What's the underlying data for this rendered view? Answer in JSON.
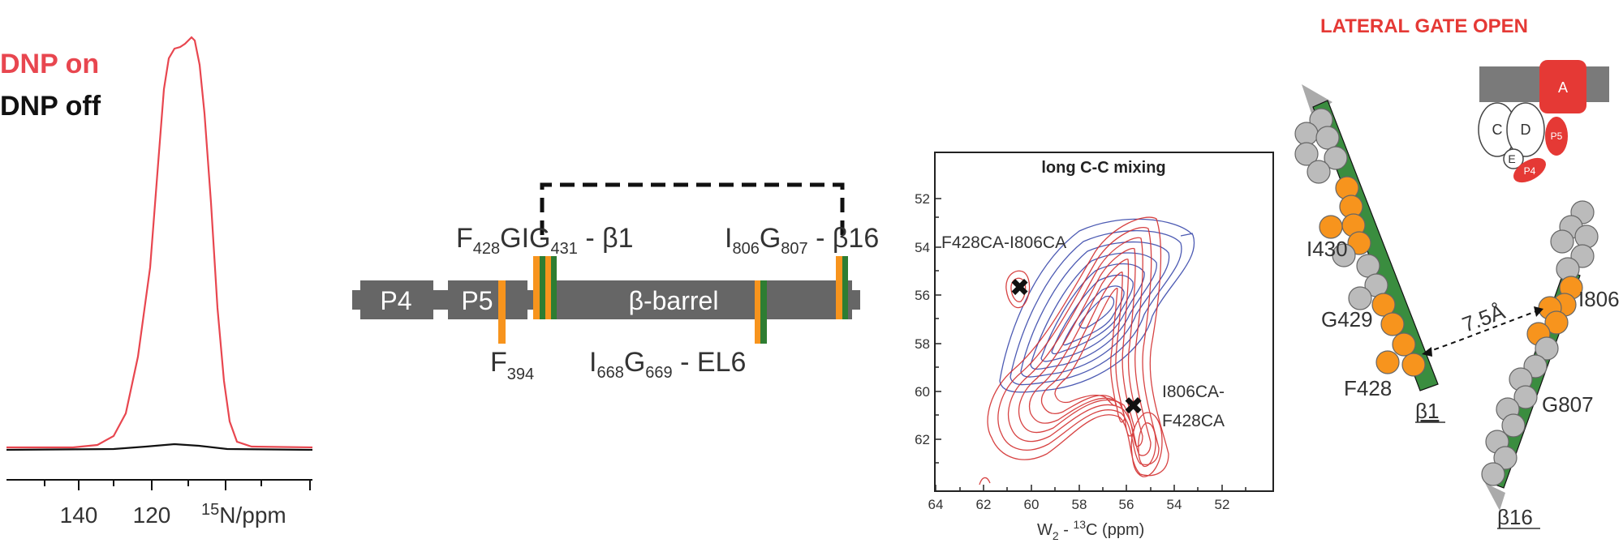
{
  "panel_a": {
    "legend_on": "DNP on",
    "legend_off": "DNP off",
    "ticks": [
      "140",
      "120"
    ],
    "axis_iso": "15",
    "axis_unit": "N/ppm",
    "colors": {
      "dnp_on": "#e8464f",
      "dnp_off": "#111111"
    }
  },
  "panel_b": {
    "domains": [
      "P4",
      "P5",
      "β-barrel"
    ],
    "label_f428_a": "F",
    "label_f428_b": "428",
    "label_f428_c": "GIG",
    "label_f428_d": "431",
    "label_f428_e": " - β1",
    "label_i806_a": "I",
    "label_i806_b": "806",
    "label_i806_c": "G",
    "label_i806_d": "807",
    "label_i806_e": " - β16",
    "label_f394_a": "F",
    "label_f394_b": "394",
    "label_i668_a": "I",
    "label_i668_b": "668",
    "label_i668_c": "G",
    "label_i668_d": "669",
    "label_i668_e": " - EL6",
    "colors": {
      "bar": "#666666",
      "orange": "#f7941d",
      "green": "#2e7d32"
    }
  },
  "panel_c": {
    "title": "long C-C mixing",
    "yticks": [
      "52",
      "54",
      "56",
      "58",
      "60",
      "62"
    ],
    "xticks": [
      "64",
      "62",
      "60",
      "58",
      "56",
      "54",
      "52"
    ],
    "xlabel_a": "W",
    "xlabel_b": "2",
    "xlabel_c": " - ",
    "xlabel_d": "13",
    "xlabel_e": "C  (ppm)",
    "cross1": "F428CA-I806CA",
    "cross2_line1": "I806CA-",
    "cross2_line2": "F428CA",
    "colors": {
      "red": "#d32f2f",
      "blue": "#3949ab"
    }
  },
  "panel_d": {
    "title": "LATERAL GATE OPEN",
    "residues": [
      "I430",
      "G429",
      "F428",
      "I806",
      "G807"
    ],
    "strand1": "β1",
    "strand2": "β16",
    "distance": "7.5Å",
    "cartoon_labels": [
      "A",
      "C",
      "D",
      "E",
      "P5",
      "P4"
    ],
    "colors": {
      "title": "#e53935",
      "orange": "#f7941d",
      "grey": "#bdbdbd",
      "green": "#3a8d3f"
    }
  }
}
